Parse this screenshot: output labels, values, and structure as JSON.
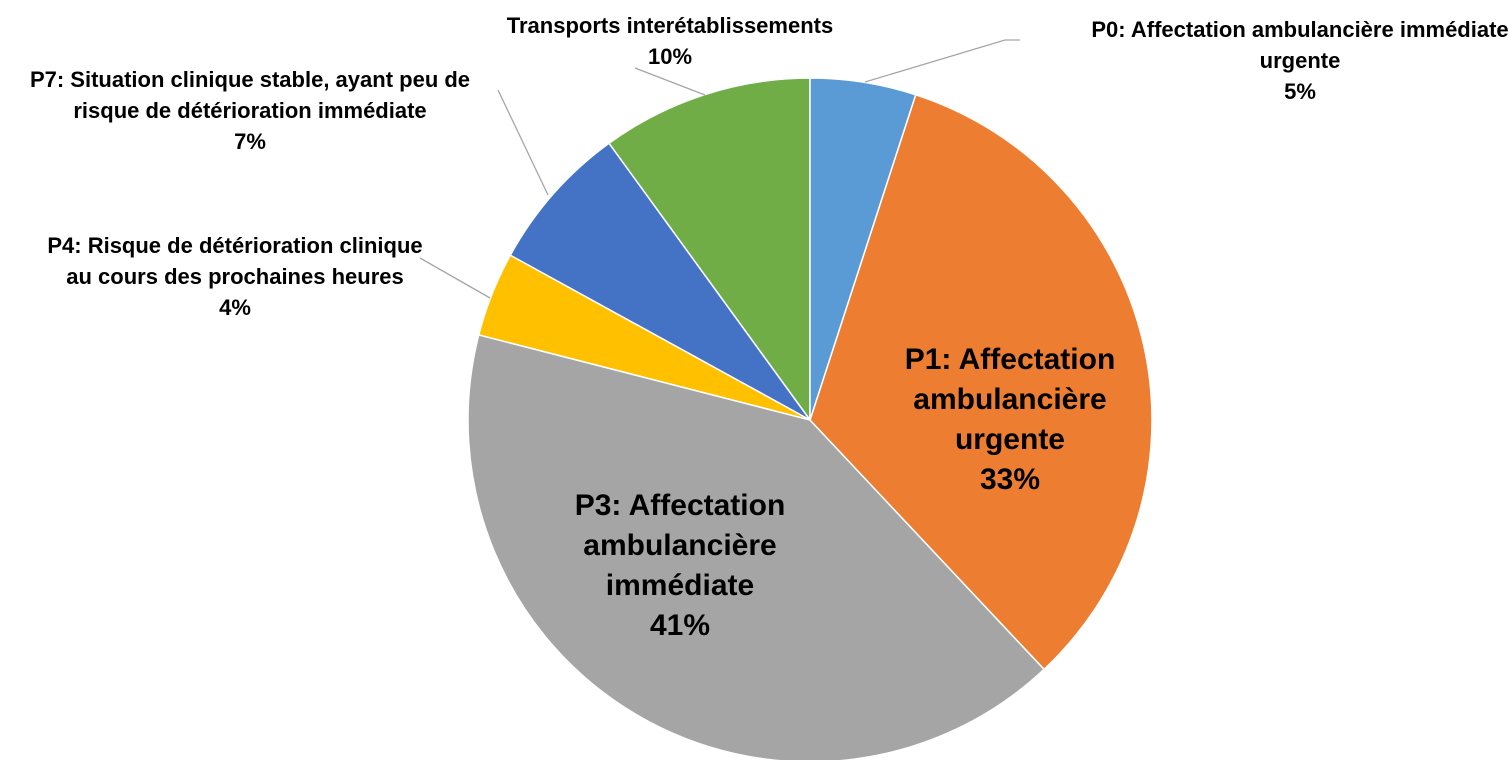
{
  "chart_data": {
    "type": "pie",
    "categories": [
      "P0: Affectation ambulancière immédiate urgente",
      "P1: Affectation ambulancière urgente",
      "P3: Affectation ambulancière immédiate",
      "P4: Risque de détérioration clinique au cours des prochaines heures",
      "P7: Situation clinique stable, ayant peu de risque de détérioration immédiate",
      "Transports interétablissements"
    ],
    "values": [
      5,
      33,
      41,
      4,
      7,
      10
    ],
    "value_labels": [
      "5%",
      "33%",
      "41%",
      "4%",
      "7%",
      "10%"
    ],
    "colors": [
      "#5b9bd5",
      "#ed7d31",
      "#a5a5a5",
      "#ffc000",
      "#4472c4",
      "#70ad47"
    ]
  }
}
